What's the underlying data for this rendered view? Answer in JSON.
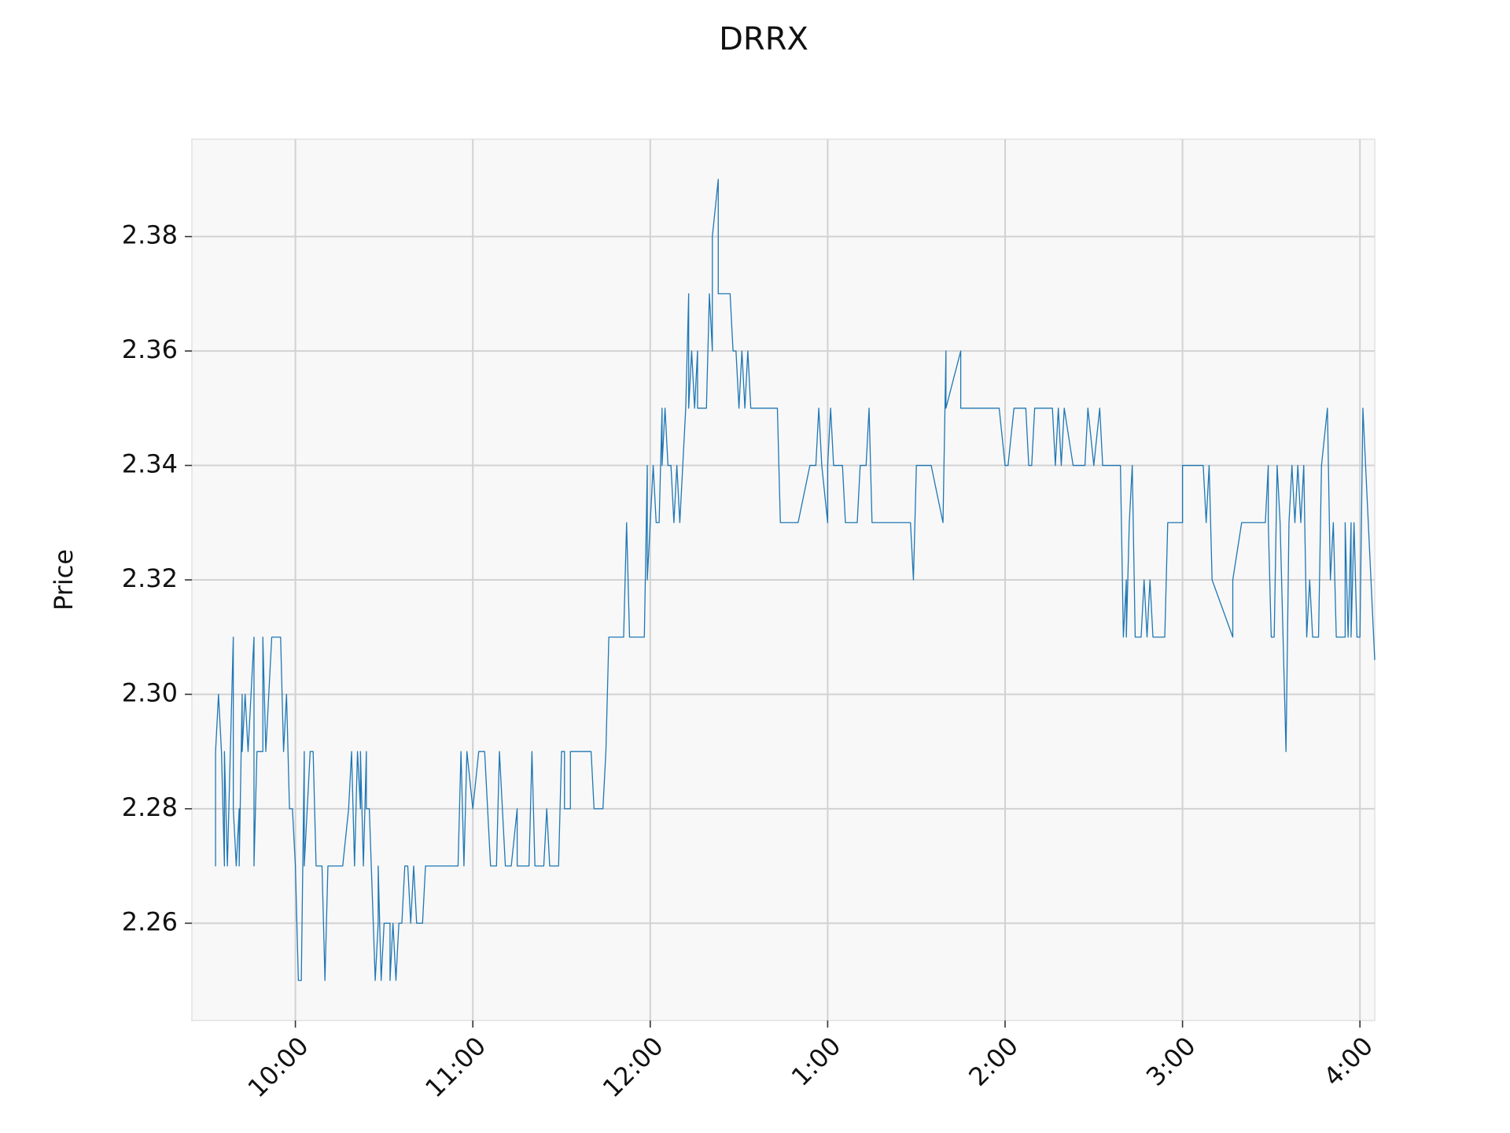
{
  "chart_data": {
    "type": "line",
    "title": "DRRX",
    "y_label": "Price",
    "x": [
      573,
      573,
      573,
      574,
      575,
      576,
      576,
      577,
      578,
      579,
      579,
      580,
      581,
      581,
      582,
      582,
      583,
      584,
      585,
      586,
      586,
      587,
      589,
      589,
      590,
      592,
      595,
      596,
      597,
      598,
      599,
      600,
      601,
      602,
      603,
      603,
      604,
      605,
      606,
      607,
      609,
      610,
      611,
      616,
      618,
      619,
      620,
      621,
      622,
      622,
      623,
      624,
      624,
      625,
      627,
      628,
      628,
      629,
      630,
      632,
      632,
      633,
      634,
      635,
      636,
      637,
      638,
      639,
      640,
      641,
      643,
      644,
      655,
      656,
      657,
      658,
      660,
      662,
      664,
      666,
      668,
      669,
      671,
      673,
      675,
      675,
      679,
      680,
      681,
      684,
      685,
      686,
      689,
      690,
      691,
      691,
      693,
      693,
      700,
      701,
      704,
      705,
      706,
      711,
      712,
      713,
      718,
      719,
      719,
      720,
      721,
      722,
      723,
      724,
      724,
      725,
      726,
      727,
      728,
      729,
      730,
      732,
      732,
      733,
      733,
      734,
      735,
      736,
      736,
      739,
      740,
      741,
      741,
      743,
      743,
      747,
      748,
      749,
      750,
      751,
      752,
      753,
      754,
      763,
      764,
      770,
      774,
      776,
      777,
      778,
      780,
      780,
      781,
      782,
      785,
      786,
      790,
      791,
      793,
      794,
      795,
      808,
      809,
      810,
      815,
      819,
      820,
      820,
      825,
      825,
      838,
      840,
      841,
      843,
      847,
      848,
      849,
      850,
      856,
      857,
      858,
      859,
      860,
      863,
      867,
      868,
      870,
      872,
      873,
      879,
      880,
      881,
      881,
      882,
      883,
      884,
      886,
      887,
      888,
      889,
      890,
      894,
      895,
      900,
      900,
      907,
      908,
      909,
      910,
      917,
      917,
      920,
      928,
      929,
      929,
      930,
      931,
      932,
      933,
      935,
      936,
      937,
      938,
      939,
      940,
      941,
      942,
      943,
      944,
      946,
      947,
      949,
      950,
      951,
      952,
      955,
      955,
      956,
      957,
      957,
      958,
      959,
      960,
      961,
      965
    ],
    "series": [
      {
        "name": "DRRX",
        "color": "#1f77b4",
        "values": [
          2.29,
          2.27,
          2.29,
          2.3,
          2.29,
          2.27,
          2.29,
          2.27,
          2.29,
          2.31,
          2.28,
          2.27,
          2.28,
          2.27,
          2.3,
          2.29,
          2.3,
          2.29,
          2.3,
          2.31,
          2.27,
          2.29,
          2.29,
          2.31,
          2.29,
          2.31,
          2.31,
          2.29,
          2.3,
          2.28,
          2.28,
          2.27,
          2.25,
          2.25,
          2.29,
          2.27,
          2.28,
          2.29,
          2.29,
          2.27,
          2.27,
          2.25,
          2.27,
          2.27,
          2.28,
          2.29,
          2.27,
          2.29,
          2.28,
          2.29,
          2.27,
          2.29,
          2.28,
          2.28,
          2.25,
          2.26,
          2.27,
          2.25,
          2.26,
          2.26,
          2.25,
          2.26,
          2.25,
          2.26,
          2.26,
          2.27,
          2.27,
          2.26,
          2.27,
          2.26,
          2.26,
          2.27,
          2.27,
          2.29,
          2.27,
          2.29,
          2.28,
          2.29,
          2.29,
          2.27,
          2.27,
          2.29,
          2.27,
          2.27,
          2.28,
          2.27,
          2.27,
          2.29,
          2.27,
          2.27,
          2.28,
          2.27,
          2.27,
          2.29,
          2.29,
          2.28,
          2.28,
          2.29,
          2.29,
          2.28,
          2.28,
          2.29,
          2.31,
          2.31,
          2.33,
          2.31,
          2.31,
          2.34,
          2.32,
          2.33,
          2.34,
          2.33,
          2.33,
          2.35,
          2.34,
          2.35,
          2.34,
          2.34,
          2.33,
          2.34,
          2.33,
          2.35,
          2.35,
          2.37,
          2.35,
          2.36,
          2.35,
          2.36,
          2.35,
          2.35,
          2.37,
          2.36,
          2.38,
          2.39,
          2.37,
          2.37,
          2.36,
          2.36,
          2.35,
          2.36,
          2.35,
          2.36,
          2.35,
          2.35,
          2.33,
          2.33,
          2.34,
          2.34,
          2.35,
          2.34,
          2.33,
          2.34,
          2.35,
          2.34,
          2.34,
          2.33,
          2.33,
          2.34,
          2.34,
          2.35,
          2.33,
          2.33,
          2.32,
          2.34,
          2.34,
          2.33,
          2.36,
          2.35,
          2.36,
          2.35,
          2.35,
          2.34,
          2.34,
          2.35,
          2.35,
          2.34,
          2.34,
          2.35,
          2.35,
          2.34,
          2.35,
          2.34,
          2.35,
          2.34,
          2.34,
          2.35,
          2.34,
          2.35,
          2.34,
          2.34,
          2.31,
          2.32,
          2.31,
          2.33,
          2.34,
          2.31,
          2.31,
          2.32,
          2.31,
          2.32,
          2.31,
          2.31,
          2.33,
          2.33,
          2.34,
          2.34,
          2.33,
          2.34,
          2.32,
          2.31,
          2.32,
          2.33,
          2.33,
          2.34,
          2.33,
          2.31,
          2.31,
          2.34,
          2.33,
          2.29,
          2.33,
          2.34,
          2.33,
          2.34,
          2.33,
          2.34,
          2.31,
          2.32,
          2.31,
          2.31,
          2.34,
          2.35,
          2.32,
          2.33,
          2.31,
          2.31,
          2.33,
          2.31,
          2.33,
          2.31,
          2.33,
          2.31,
          2.31,
          2.35,
          2.306
        ]
      }
    ],
    "xlim": [
      565,
      965
    ],
    "ylim": [
      2.243,
      2.397
    ],
    "xticks": [
      {
        "value": 600,
        "label": "10:00"
      },
      {
        "value": 660,
        "label": "11:00"
      },
      {
        "value": 720,
        "label": "12:00"
      },
      {
        "value": 780,
        "label": "1:00"
      },
      {
        "value": 840,
        "label": "2:00"
      },
      {
        "value": 900,
        "label": "3:00"
      },
      {
        "value": 960,
        "label": "4:00"
      }
    ],
    "yticks": [
      {
        "value": 2.26,
        "label": "2.26"
      },
      {
        "value": 2.28,
        "label": "2.28"
      },
      {
        "value": 2.3,
        "label": "2.30"
      },
      {
        "value": 2.32,
        "label": "2.32"
      },
      {
        "value": 2.34,
        "label": "2.34"
      },
      {
        "value": 2.36,
        "label": "2.36"
      },
      {
        "value": 2.38,
        "label": "2.38"
      }
    ],
    "grid": true
  }
}
